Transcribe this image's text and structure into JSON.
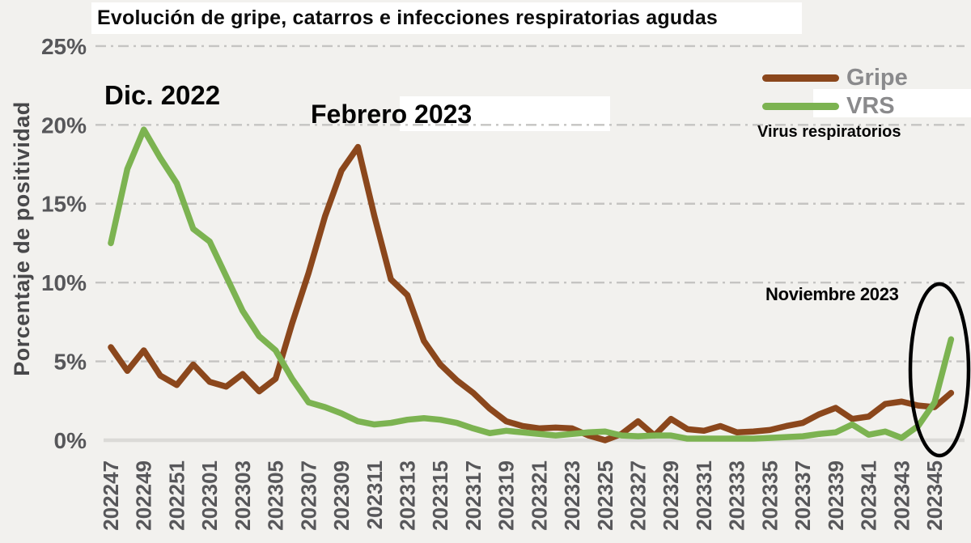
{
  "title": "Evolución de gripe, catarros e infecciones respiratorias agudas",
  "y_axis": {
    "title": "Porcentaje de positividad",
    "tick_labels": [
      "0%",
      "5%",
      "10%",
      "15%",
      "20%",
      "25%"
    ]
  },
  "legend": {
    "items": [
      {
        "label": "Gripe",
        "color": "#8b471c"
      },
      {
        "label": "VRS",
        "color": "#7cb351"
      }
    ],
    "note": "Virus respiratorios"
  },
  "annotations": [
    {
      "text": "Dic. 2022"
    },
    {
      "text": "Febrero 2023"
    },
    {
      "text": "Noviembre 2023"
    }
  ],
  "highlight": {
    "shape": "ellipse",
    "color": "#000000",
    "marks": "subida de VRS en la semana 202345"
  },
  "colors": {
    "background": "#f2f1ee",
    "grid": "#c5c4c2",
    "baseline": "#dbdad7",
    "axis_text": "#57575a",
    "annotation_text": "#050505",
    "legend_text": "#8a8a8c",
    "highlight_background": "#ffffff",
    "gripe": "#8b471c",
    "vrs": "#7cb351"
  },
  "chart_data": {
    "type": "line",
    "title": "Evolución de gripe, catarros e infecciones respiratorias agudas",
    "xlabel": "",
    "ylabel": "Porcentaje de positividad",
    "ylim": [
      0,
      25
    ],
    "yticks": [
      0,
      5,
      10,
      15,
      20,
      25
    ],
    "grid": "horizontal-dashed",
    "legend_position": "top-right",
    "x_tick_labels_every": 2,
    "x": [
      "202247",
      "202248",
      "202249",
      "202250",
      "202251",
      "202252",
      "202301",
      "202302",
      "202303",
      "202304",
      "202305",
      "202306",
      "202307",
      "202308",
      "202309",
      "202310",
      "202311",
      "202312",
      "202313",
      "202314",
      "202315",
      "202316",
      "202317",
      "202318",
      "202319",
      "202320",
      "202321",
      "202322",
      "202323",
      "202324",
      "202325",
      "202326",
      "202327",
      "202328",
      "202329",
      "202330",
      "202331",
      "202332",
      "202333",
      "202334",
      "202335",
      "202336",
      "202337",
      "202338",
      "202339",
      "202340",
      "202341",
      "202342",
      "202343",
      "202344",
      "202345",
      "202346"
    ],
    "series": [
      {
        "name": "Gripe",
        "color": "#8b471c",
        "values": [
          5.9,
          4.4,
          5.7,
          4.1,
          3.5,
          4.8,
          3.7,
          3.4,
          4.2,
          3.1,
          3.9,
          7.4,
          10.6,
          14.2,
          17.1,
          18.6,
          14.2,
          10.2,
          9.2,
          6.3,
          4.8,
          3.8,
          3.0,
          2.0,
          1.2,
          0.9,
          0.75,
          0.8,
          0.75,
          0.3,
          0.0,
          0.4,
          1.2,
          0.3,
          1.35,
          0.7,
          0.6,
          0.9,
          0.5,
          0.55,
          0.65,
          0.9,
          1.1,
          1.65,
          2.05,
          1.35,
          1.5,
          2.3,
          2.45,
          2.2,
          2.1,
          3.0
        ]
      },
      {
        "name": "VRS",
        "color": "#7cb351",
        "values": [
          12.5,
          17.2,
          19.7,
          17.9,
          16.3,
          13.4,
          12.6,
          10.4,
          8.2,
          6.6,
          5.7,
          3.9,
          2.4,
          2.1,
          1.7,
          1.2,
          1.0,
          1.1,
          1.3,
          1.4,
          1.3,
          1.1,
          0.75,
          0.45,
          0.6,
          0.5,
          0.4,
          0.3,
          0.4,
          0.5,
          0.55,
          0.3,
          0.25,
          0.3,
          0.3,
          0.1,
          0.1,
          0.1,
          0.1,
          0.1,
          0.15,
          0.2,
          0.25,
          0.4,
          0.5,
          1.0,
          0.35,
          0.55,
          0.15,
          0.9,
          2.4,
          6.4
        ]
      }
    ]
  }
}
